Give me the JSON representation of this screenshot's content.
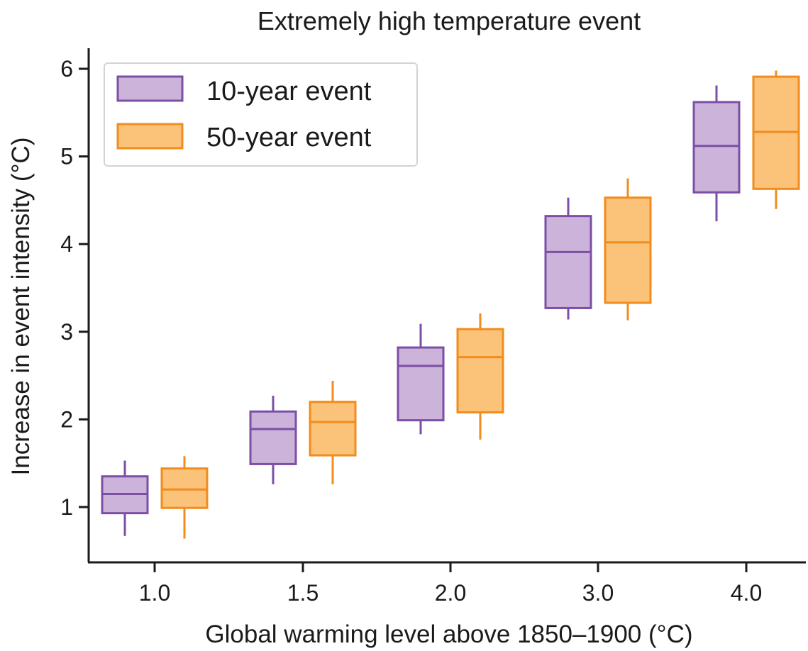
{
  "chart_data": {
    "type": "box",
    "title": "Extremely high temperature event",
    "xlabel": "Global warming level above 1850–1900 (°C)",
    "ylabel": "Increase in event intensity (°C)",
    "categories": [
      "1.0",
      "1.5",
      "2.0",
      "3.0",
      "4.0"
    ],
    "ylim": [
      0.3,
      6.25
    ],
    "yticks": [
      1,
      2,
      3,
      4,
      5,
      6
    ],
    "grid": false,
    "legend_position": "top-left",
    "series": [
      {
        "name": "10-year event",
        "edge_color": "#7b4fa6",
        "fill_color": "#cbb3d9",
        "boxes": [
          {
            "whisker_low": 0.67,
            "q1": 0.93,
            "median": 1.15,
            "q3": 1.35,
            "whisker_high": 1.53
          },
          {
            "whisker_low": 1.26,
            "q1": 1.49,
            "median": 1.89,
            "q3": 2.09,
            "whisker_high": 2.27
          },
          {
            "whisker_low": 1.83,
            "q1": 1.99,
            "median": 2.61,
            "q3": 2.82,
            "whisker_high": 3.09
          },
          {
            "whisker_low": 3.14,
            "q1": 3.27,
            "median": 3.91,
            "q3": 4.32,
            "whisker_high": 4.53
          },
          {
            "whisker_low": 4.26,
            "q1": 4.59,
            "median": 5.12,
            "q3": 5.62,
            "whisker_high": 5.81
          }
        ]
      },
      {
        "name": "50-year event",
        "edge_color": "#f28c1c",
        "fill_color": "#fbc27a",
        "boxes": [
          {
            "whisker_low": 0.64,
            "q1": 0.99,
            "median": 1.2,
            "q3": 1.44,
            "whisker_high": 1.58
          },
          {
            "whisker_low": 1.26,
            "q1": 1.59,
            "median": 1.97,
            "q3": 2.2,
            "whisker_high": 2.44
          },
          {
            "whisker_low": 1.77,
            "q1": 2.08,
            "median": 2.71,
            "q3": 3.03,
            "whisker_high": 3.21
          },
          {
            "whisker_low": 3.13,
            "q1": 3.33,
            "median": 4.02,
            "q3": 4.53,
            "whisker_high": 4.75
          },
          {
            "whisker_low": 4.4,
            "q1": 4.63,
            "median": 5.28,
            "q3": 5.91,
            "whisker_high": 5.98
          }
        ]
      }
    ]
  }
}
